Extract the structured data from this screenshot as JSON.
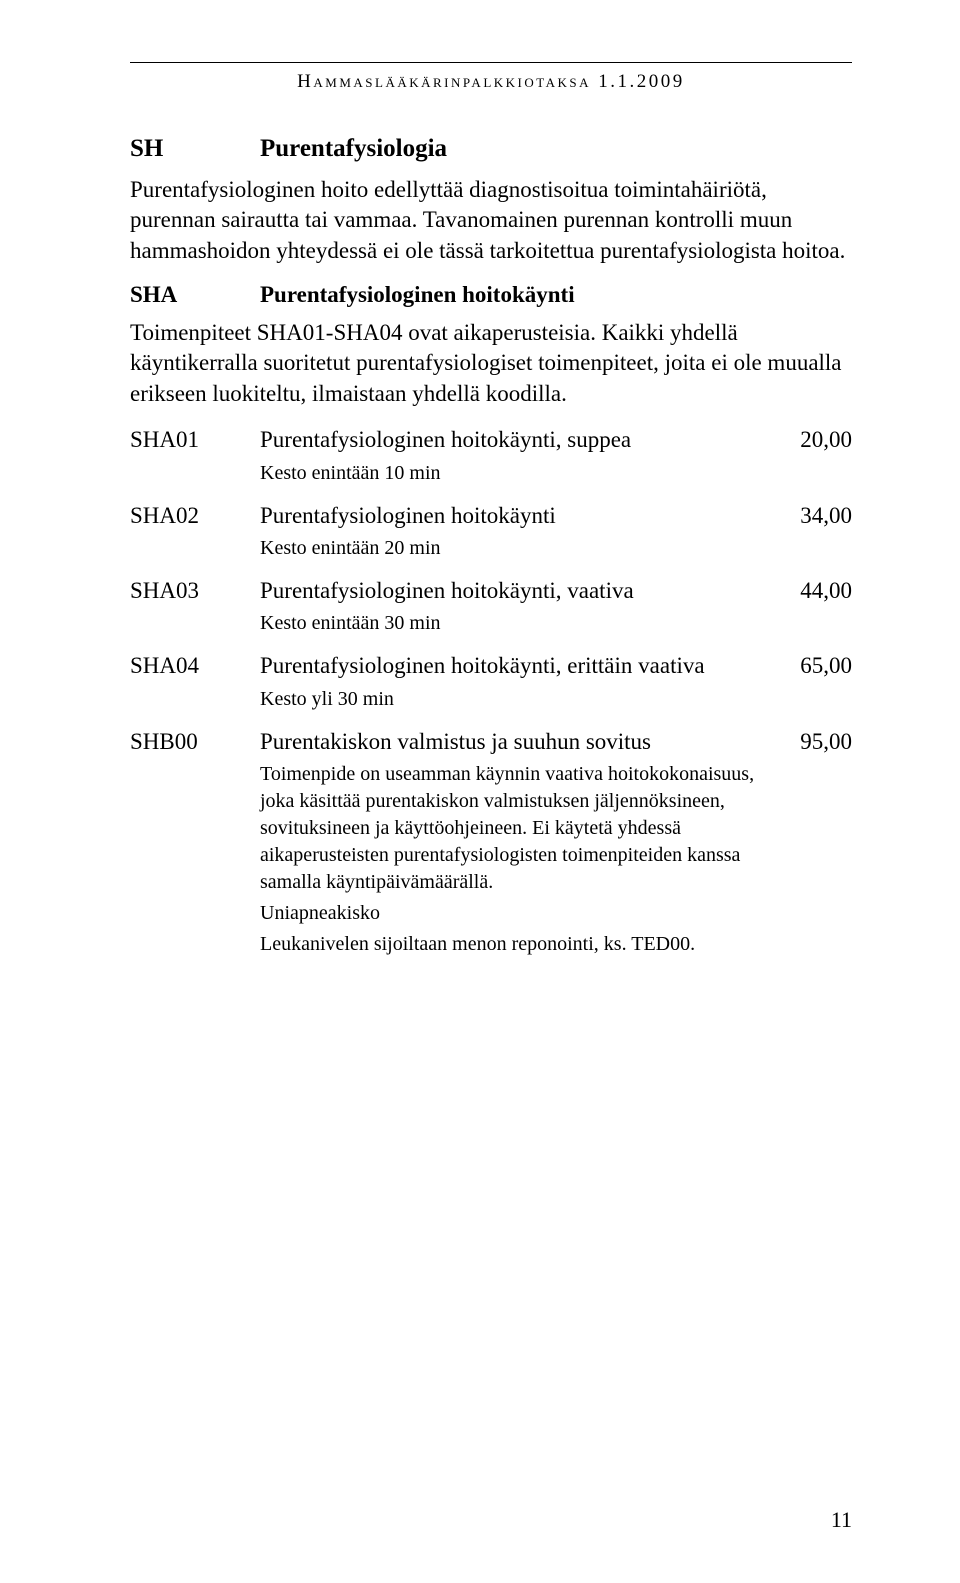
{
  "running_head": "Hammaslääkärinpalkkiotaksa 1.1.2009",
  "section": {
    "code": "SH",
    "title": "Purentafysiologia"
  },
  "intro_para": "Purentafysiologinen hoito edellyttää diagnostisoitua toimintahäiriötä, purennan sairautta tai vammaa. Tavanomainen purennan kontrolli muun hammashoidon yhteydessä ei ole tässä tarkoitettua purentafysiologista hoitoa.",
  "subsection": {
    "code": "SHA",
    "title": "Purentafysiologinen hoitokäynti"
  },
  "sub_intro": "Toimenpiteet SHA01-SHA04 ovat aikaperusteisia. Kaikki yhdellä käyntikerralla suoritetut purentafysiologiset toimenpiteet, joita ei ole muualla erikseen luokiteltu, ilmaistaan yhdellä koodilla.",
  "items": [
    {
      "code": "SHA01",
      "title": "Purentafysiologinen hoitokäynti, suppea",
      "price": "20,00",
      "notes": [
        "Kesto enintään 10 min"
      ]
    },
    {
      "code": "SHA02",
      "title": "Purentafysiologinen hoitokäynti",
      "price": "34,00",
      "notes": [
        "Kesto enintään 20 min"
      ]
    },
    {
      "code": "SHA03",
      "title": "Purentafysiologinen hoitokäynti, vaativa",
      "price": "44,00",
      "notes": [
        "Kesto enintään 30 min"
      ]
    },
    {
      "code": "SHA04",
      "title": "Purentafysiologinen hoitokäynti, erittäin vaativa",
      "price": "65,00",
      "notes": [
        "Kesto yli 30 min"
      ]
    },
    {
      "code": "SHB00",
      "title": "Purentakiskon valmistus ja suuhun sovitus",
      "price": "95,00",
      "notes": [
        "Toimenpide on useamman käynnin vaativa hoitokokonaisuus, joka käsittää purentakiskon valmistuksen jäljennöksineen, sovituksineen ja käyttöohjeineen. Ei käytetä yhdessä aikaperusteisten purentafysiologisten toimenpiteiden kanssa samalla käyntipäivämäärällä.",
        "Uniapneakisko",
        "Leukanivelen sijoiltaan menon reponointi, ks. TED00."
      ]
    }
  ],
  "page_number": "11"
}
